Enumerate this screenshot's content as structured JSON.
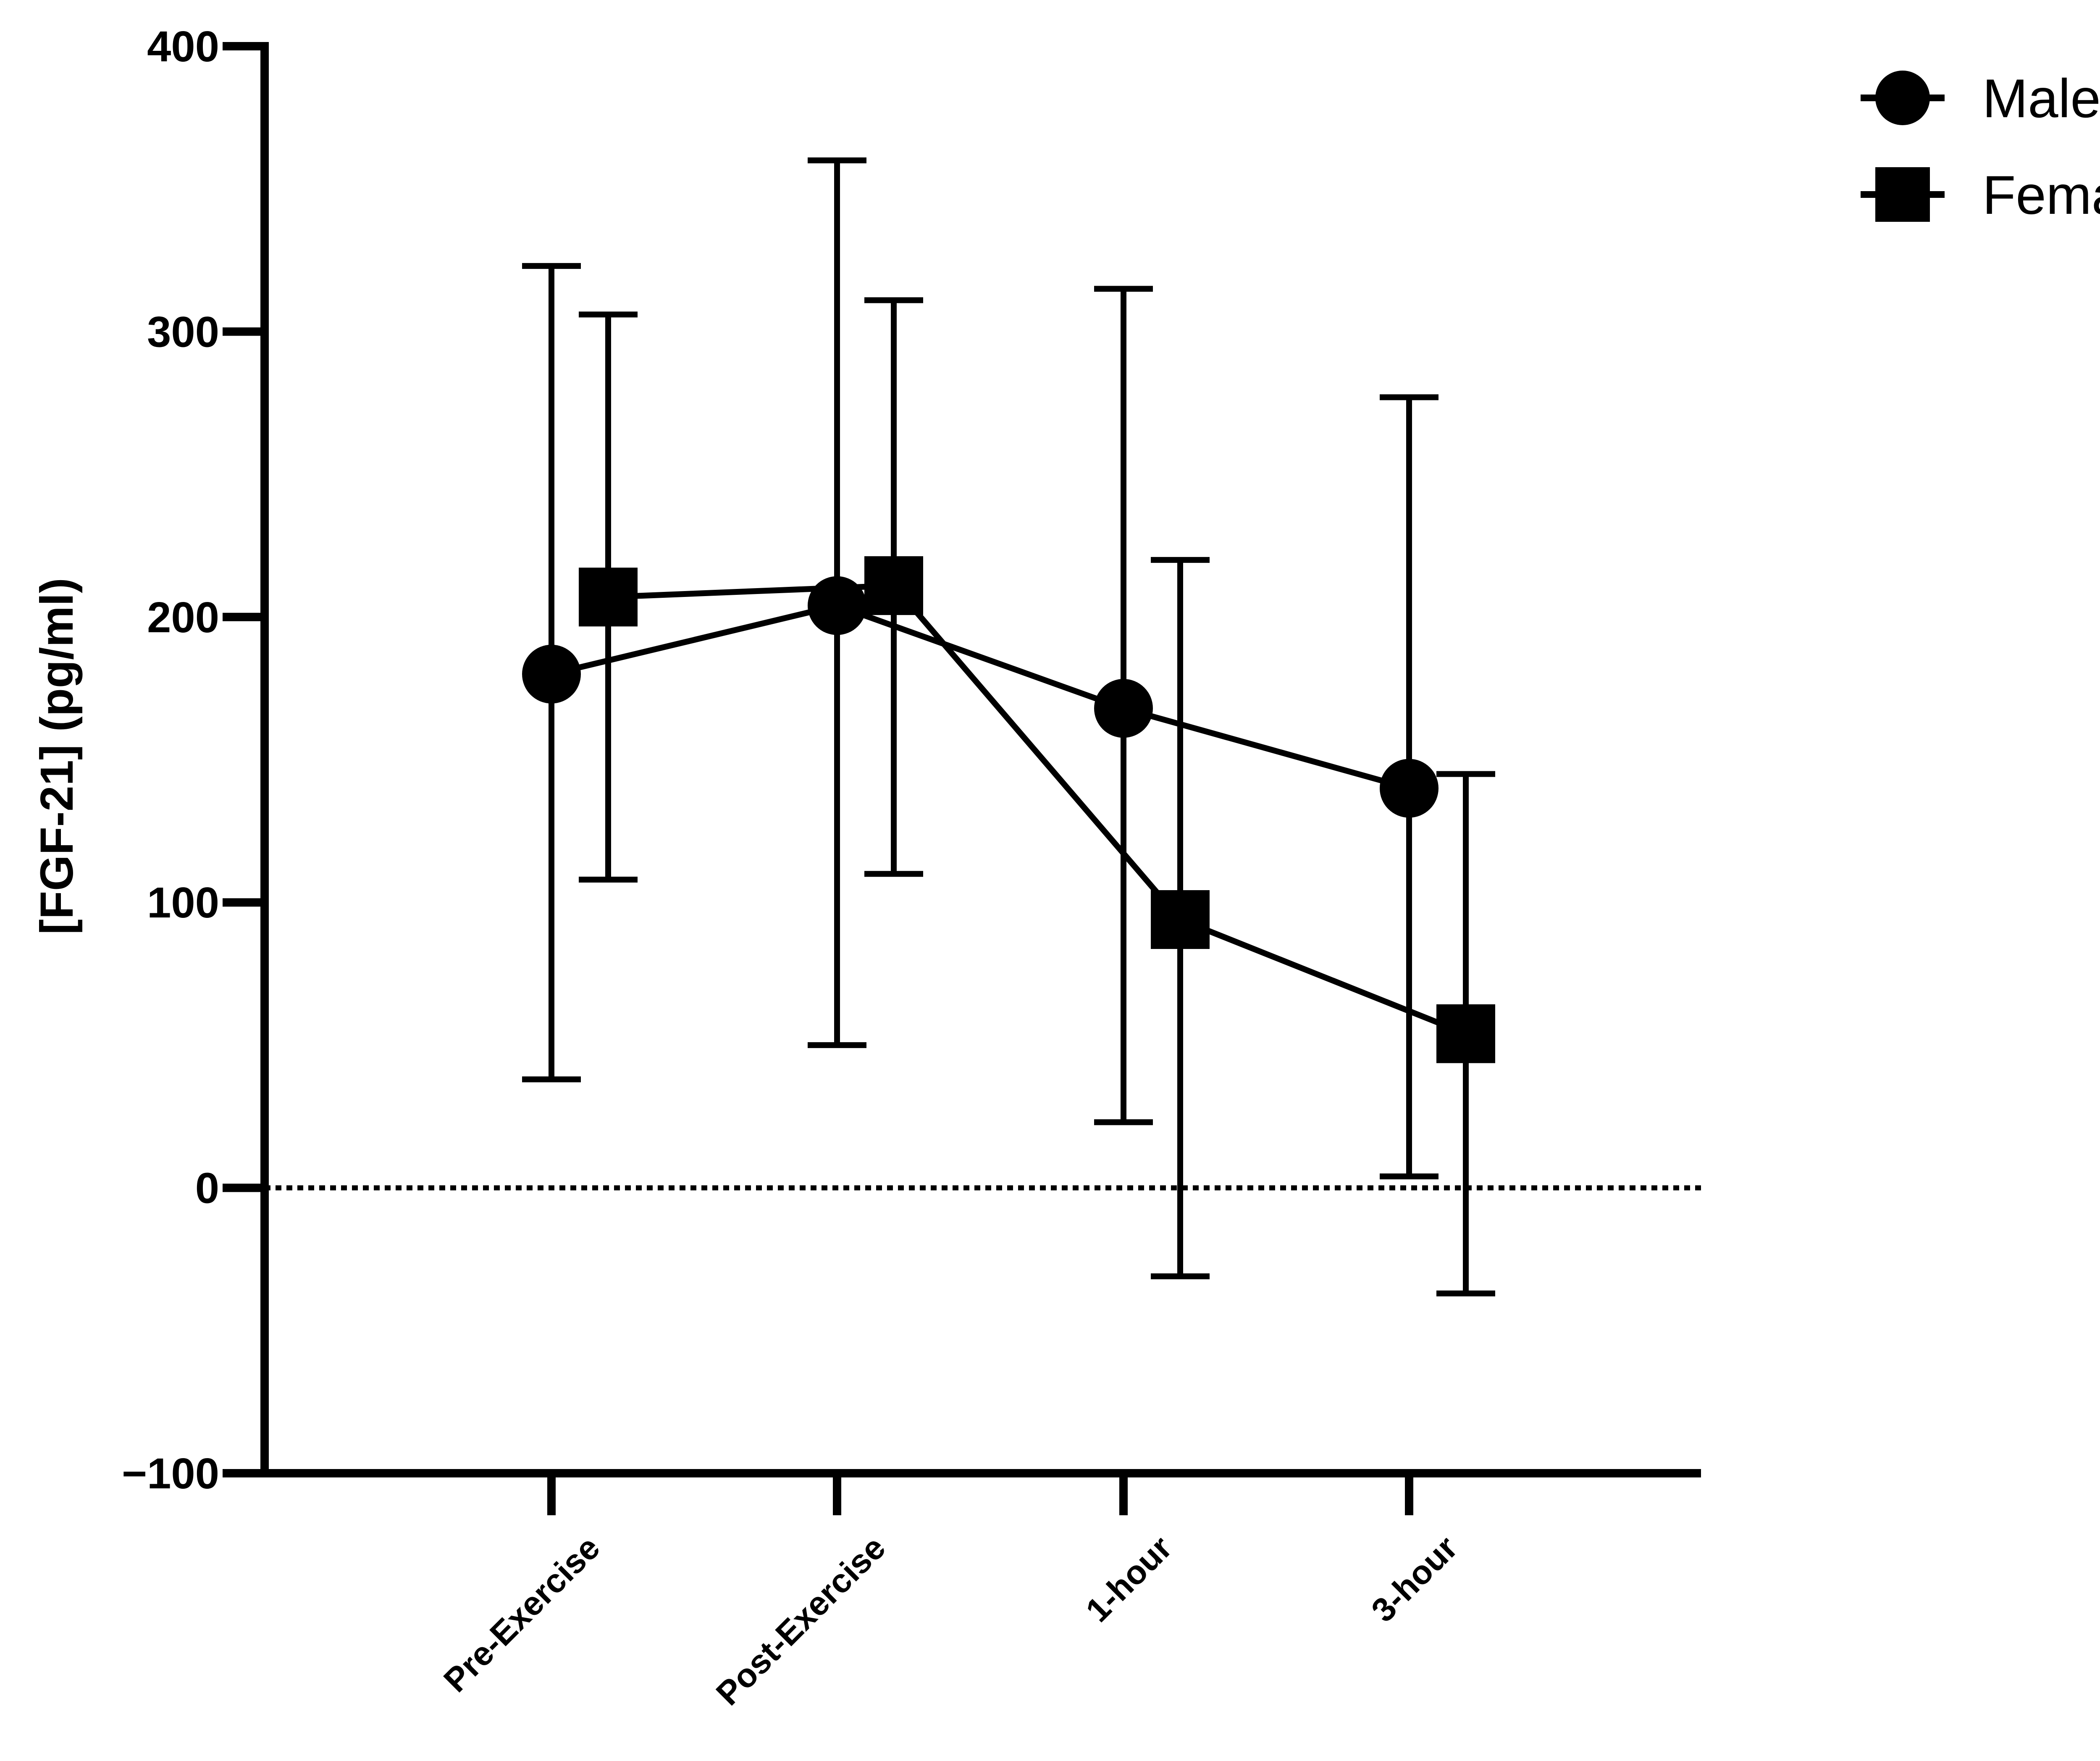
{
  "chart_data": {
    "type": "line",
    "title": "",
    "xlabel": "",
    "ylabel": "[FGF-21] (pg/ml)",
    "ylim": [
      -100,
      400
    ],
    "yticks": [
      -100,
      0,
      100,
      200,
      300,
      400
    ],
    "ytick_labels": [
      "−100",
      "0",
      "100",
      "200",
      "300",
      "400"
    ],
    "categories": [
      "Pre-Exercise",
      "Post-Exercise",
      "1-hour",
      "3-hour"
    ],
    "reference_line": 0,
    "legend_position": "top-right",
    "series": [
      {
        "name": "Male",
        "marker": "circle",
        "values": [
          180,
          204,
          168,
          140
        ],
        "err_low": [
          38,
          50,
          23,
          4
        ],
        "err_high": [
          323,
          360,
          315,
          277
        ]
      },
      {
        "name": "Female",
        "marker": "square",
        "values": [
          207,
          211,
          94,
          54
        ],
        "err_low": [
          108,
          110,
          -31,
          -37
        ],
        "err_high": [
          306,
          311,
          220,
          145
        ]
      }
    ]
  }
}
